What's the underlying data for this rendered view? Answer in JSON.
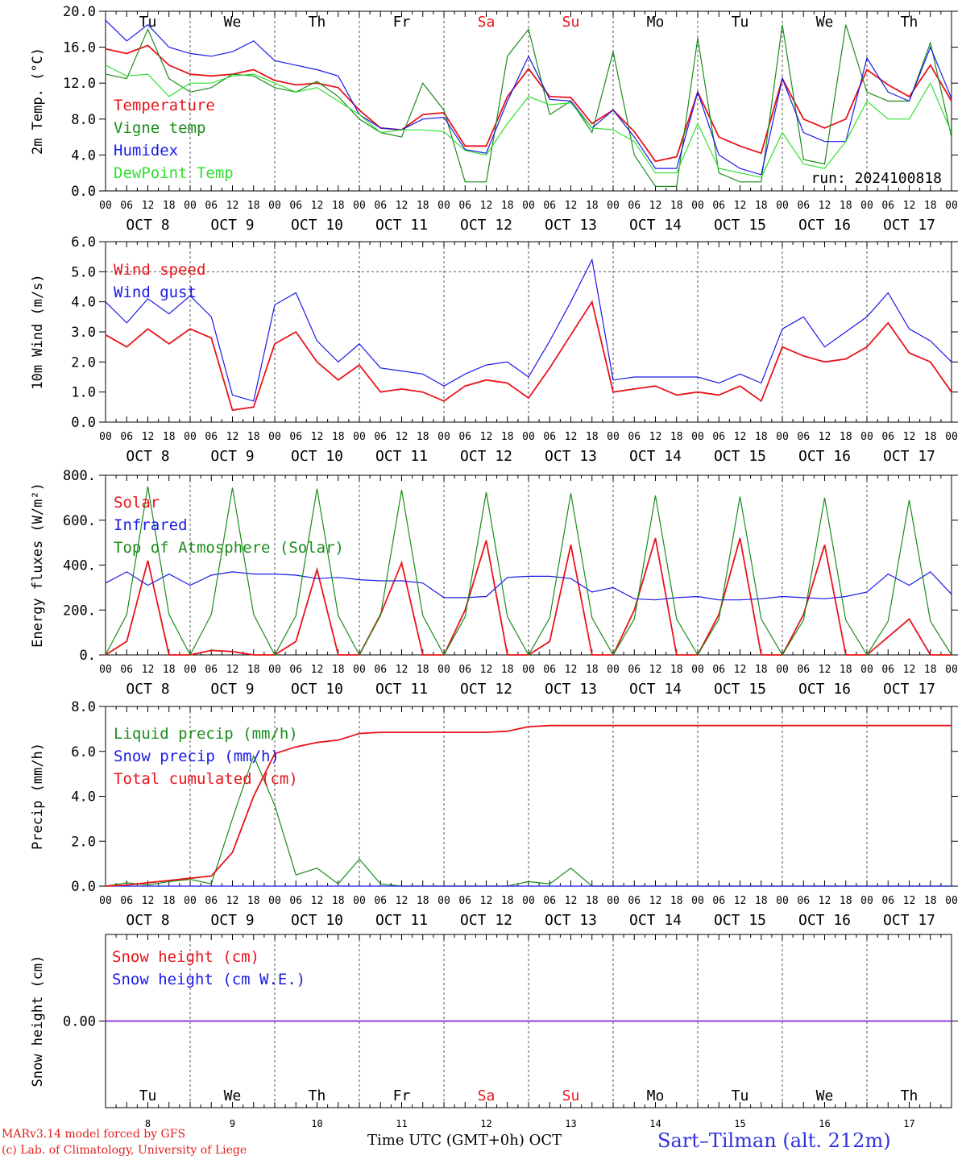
{
  "run_label": "run: 2024100818",
  "footer": {
    "model": "MARv3.14 model forced by GFS",
    "credit": "(c) Lab. of Climatology, University of Liege",
    "time_axis": "Time UTC (GMT+0h) OCT",
    "station": "Sart–Tilman (alt. 212m)"
  },
  "colors": {
    "red": "#e8141a",
    "green": "#1a8c1a",
    "blue": "#1a1ae8",
    "lightgreen": "#30e030",
    "purple": "#8a2be2"
  },
  "days": [
    {
      "weekday": "Tu",
      "date": "OCT  8",
      "num": "8",
      "weekend": false
    },
    {
      "weekday": "We",
      "date": "OCT  9",
      "num": "9",
      "weekend": false
    },
    {
      "weekday": "Th",
      "date": "OCT 10",
      "num": "10",
      "weekend": false
    },
    {
      "weekday": "Fr",
      "date": "OCT 11",
      "num": "11",
      "weekend": false
    },
    {
      "weekday": "Sa",
      "date": "OCT 12",
      "num": "12",
      "weekend": true
    },
    {
      "weekday": "Su",
      "date": "OCT 13",
      "num": "13",
      "weekend": true
    },
    {
      "weekday": "Mo",
      "date": "OCT 14",
      "num": "14",
      "weekend": false
    },
    {
      "weekday": "Tu",
      "date": "OCT 15",
      "num": "15",
      "weekend": false
    },
    {
      "weekday": "We",
      "date": "OCT 16",
      "num": "16",
      "weekend": false
    },
    {
      "weekday": "Th",
      "date": "OCT 17",
      "num": "17",
      "weekend": false
    }
  ],
  "hour_ticks": [
    "00",
    "06",
    "12",
    "18"
  ],
  "chart_data": [
    {
      "type": "line",
      "ylabel": "2m Temp. (°C)",
      "ylim": [
        0,
        20
      ],
      "yticks": [
        "0.0",
        "4.0",
        "8.0",
        "12.0",
        "16.0",
        "20.0"
      ],
      "x_hours": [
        0,
        6,
        12,
        18,
        24,
        30,
        36,
        42,
        48,
        54,
        60,
        66,
        72,
        78,
        84,
        90,
        96,
        102,
        108,
        114,
        120,
        126,
        132,
        138,
        144,
        150,
        156,
        162,
        168,
        174,
        180,
        186,
        192,
        198,
        204,
        210,
        216,
        222,
        228,
        234,
        240
      ],
      "series": [
        {
          "name": "Temperature",
          "color": "red",
          "values": [
            15.8,
            15.3,
            16.2,
            14.0,
            13.0,
            12.8,
            13.0,
            13.5,
            12.3,
            11.8,
            12.0,
            11.5,
            9.0,
            7.0,
            6.8,
            8.5,
            8.7,
            5.0,
            5.0,
            10.5,
            13.6,
            10.5,
            10.4,
            7.5,
            9.0,
            6.6,
            3.3,
            3.8,
            11.0,
            6.0,
            5.0,
            4.2,
            12.5,
            8.0,
            7.0,
            8.0,
            13.5,
            11.8,
            10.5,
            14.0,
            10.0
          ]
        },
        {
          "name": "Vigne temp",
          "color": "green",
          "values": [
            13.0,
            12.5,
            18.0,
            12.5,
            11.0,
            11.5,
            13.0,
            12.8,
            11.5,
            11.0,
            12.2,
            10.5,
            8.0,
            6.5,
            6.0,
            12.0,
            9.0,
            1.0,
            1.0,
            15.0,
            18.0,
            8.5,
            10.0,
            6.5,
            15.5,
            4.0,
            0.5,
            0.5,
            17.0,
            2.0,
            1.0,
            1.0,
            18.5,
            3.5,
            3.0,
            18.5,
            11.0,
            10.0,
            10.0,
            16.5,
            6.0
          ]
        },
        {
          "name": "Humidex",
          "color": "blue",
          "values": [
            19.0,
            16.7,
            18.5,
            16.0,
            15.3,
            15.0,
            15.5,
            16.7,
            14.5,
            14.0,
            13.5,
            12.8,
            8.5,
            7.0,
            6.8,
            8.0,
            8.2,
            4.6,
            4.2,
            10.0,
            15.0,
            10.2,
            10.0,
            7.0,
            9.0,
            6.0,
            2.5,
            2.5,
            11.0,
            4.0,
            2.5,
            1.8,
            12.5,
            6.5,
            5.5,
            5.5,
            14.8,
            11.0,
            10.0,
            16.0,
            10.3
          ]
        },
        {
          "name": "DewPoint Temp",
          "color": "lightgreen",
          "values": [
            14.0,
            12.8,
            13.0,
            10.5,
            12.0,
            12.0,
            12.8,
            13.0,
            12.0,
            11.0,
            11.5,
            10.0,
            8.5,
            6.5,
            6.8,
            6.8,
            6.6,
            4.5,
            4.0,
            7.5,
            10.5,
            9.6,
            9.8,
            7.0,
            6.8,
            5.5,
            2.0,
            2.0,
            7.5,
            2.5,
            2.0,
            1.5,
            6.5,
            3.0,
            2.5,
            5.5,
            10.0,
            8.0,
            8.0,
            12.0,
            6.5
          ]
        }
      ]
    },
    {
      "type": "line",
      "ylabel": "10m Wind (m/s)",
      "ylim": [
        0,
        6
      ],
      "yticks": [
        "0.0",
        "1.0",
        "2.0",
        "3.0",
        "4.0",
        "5.0",
        "6.0"
      ],
      "dashed_y": 5,
      "x_hours": [
        0,
        6,
        12,
        18,
        24,
        30,
        36,
        42,
        48,
        54,
        60,
        66,
        72,
        78,
        84,
        90,
        96,
        102,
        108,
        114,
        120,
        126,
        132,
        138,
        144,
        150,
        156,
        162,
        168,
        174,
        180,
        186,
        192,
        198,
        204,
        210,
        216,
        222,
        228,
        234,
        240
      ],
      "series": [
        {
          "name": "Wind speed",
          "color": "red",
          "values": [
            2.9,
            2.5,
            3.1,
            2.6,
            3.1,
            2.8,
            0.4,
            0.5,
            2.6,
            3.0,
            2.0,
            1.4,
            1.9,
            1.0,
            1.1,
            1.0,
            0.7,
            1.2,
            1.4,
            1.3,
            0.8,
            1.8,
            2.9,
            4.0,
            1.0,
            1.1,
            1.2,
            0.9,
            1.0,
            0.9,
            1.2,
            0.7,
            2.5,
            2.2,
            2.0,
            2.1,
            2.5,
            3.3,
            2.3,
            2.0,
            1.0
          ]
        },
        {
          "name": "Wind gust",
          "color": "blue",
          "values": [
            4.0,
            3.3,
            4.1,
            3.6,
            4.2,
            3.5,
            0.9,
            0.7,
            3.9,
            4.3,
            2.7,
            2.0,
            2.6,
            1.8,
            1.7,
            1.6,
            1.2,
            1.6,
            1.9,
            2.0,
            1.5,
            2.7,
            4.0,
            5.4,
            1.4,
            1.5,
            1.5,
            1.5,
            1.5,
            1.3,
            1.6,
            1.3,
            3.1,
            3.5,
            2.5,
            3.0,
            3.5,
            4.3,
            3.1,
            2.7,
            2.0
          ]
        }
      ]
    },
    {
      "type": "line",
      "ylabel": "Energy fluxes (W/m²)",
      "ylim": [
        0,
        800
      ],
      "yticks": [
        "0.",
        "200.",
        "400.",
        "600.",
        "800."
      ],
      "x_hours": [
        0,
        6,
        12,
        18,
        24,
        30,
        36,
        42,
        48,
        54,
        60,
        66,
        72,
        78,
        84,
        90,
        96,
        102,
        108,
        114,
        120,
        126,
        132,
        138,
        144,
        150,
        156,
        162,
        168,
        174,
        180,
        186,
        192,
        198,
        204,
        210,
        216,
        222,
        228,
        234,
        240
      ],
      "series": [
        {
          "name": "Solar",
          "color": "red",
          "values": [
            0,
            60,
            420,
            0,
            0,
            20,
            15,
            0,
            0,
            60,
            380,
            0,
            0,
            180,
            410,
            0,
            0,
            200,
            510,
            0,
            0,
            60,
            490,
            0,
            0,
            200,
            520,
            0,
            0,
            180,
            520,
            0,
            0,
            180,
            490,
            0,
            0,
            80,
            160,
            0,
            0
          ]
        },
        {
          "name": "Infrared",
          "color": "blue",
          "values": [
            320,
            370,
            310,
            360,
            310,
            355,
            370,
            360,
            360,
            355,
            340,
            345,
            335,
            330,
            330,
            320,
            255,
            255,
            260,
            345,
            350,
            350,
            340,
            280,
            300,
            250,
            245,
            255,
            260,
            245,
            245,
            250,
            260,
            255,
            250,
            260,
            280,
            360,
            310,
            370,
            270
          ]
        },
        {
          "name": "Top of Atmosphere (Solar)",
          "color": "green",
          "values": [
            0,
            180,
            750,
            180,
            0,
            180,
            745,
            180,
            0,
            175,
            740,
            175,
            0,
            175,
            735,
            175,
            0,
            170,
            725,
            170,
            0,
            165,
            720,
            165,
            0,
            160,
            710,
            160,
            0,
            160,
            705,
            160,
            0,
            155,
            700,
            155,
            0,
            150,
            690,
            150,
            0
          ]
        }
      ]
    },
    {
      "type": "line",
      "ylabel": "Precip (mm/h)",
      "ylim": [
        0,
        8
      ],
      "yticks": [
        "0.0",
        "2.0",
        "4.0",
        "6.0",
        "8.0"
      ],
      "x_hours": [
        0,
        6,
        12,
        18,
        24,
        30,
        36,
        42,
        48,
        54,
        60,
        66,
        72,
        78,
        84,
        90,
        96,
        102,
        108,
        114,
        120,
        126,
        132,
        138,
        144,
        150,
        156,
        162,
        168,
        174,
        180,
        186,
        192,
        198,
        204,
        210,
        216,
        222,
        228,
        234,
        240
      ],
      "series": [
        {
          "name": "Liquid precip (mm/h)",
          "color": "green",
          "values": [
            0.0,
            0.15,
            0.05,
            0.2,
            0.3,
            0.1,
            3.0,
            5.8,
            3.6,
            0.5,
            0.8,
            0.1,
            1.2,
            0.1,
            0.0,
            0.0,
            0.0,
            0.0,
            0.0,
            0.0,
            0.2,
            0.1,
            0.8,
            0.0,
            0.0,
            0.0,
            0.0,
            0.0,
            0.0,
            0.0,
            0.0,
            0.0,
            0.0,
            0.0,
            0.0,
            0.0,
            0.0,
            0.0,
            0.0,
            0.0,
            0.0
          ]
        },
        {
          "name": "Snow precip (mm/h)",
          "color": "blue",
          "values": [
            0,
            0,
            0,
            0,
            0,
            0,
            0,
            0,
            0,
            0,
            0,
            0,
            0,
            0,
            0,
            0,
            0,
            0,
            0,
            0,
            0,
            0,
            0,
            0,
            0,
            0,
            0,
            0,
            0,
            0,
            0,
            0,
            0,
            0,
            0,
            0,
            0,
            0,
            0,
            0,
            0
          ]
        },
        {
          "name": "Total cumulated (cm)",
          "color": "red",
          "values": [
            0.0,
            0.05,
            0.15,
            0.25,
            0.35,
            0.45,
            1.5,
            4.0,
            5.9,
            6.2,
            6.4,
            6.5,
            6.8,
            6.85,
            6.85,
            6.85,
            6.85,
            6.85,
            6.85,
            6.9,
            7.1,
            7.15,
            7.15,
            7.15,
            7.15,
            7.15,
            7.15,
            7.15,
            7.15,
            7.15,
            7.15,
            7.15,
            7.15,
            7.15,
            7.15,
            7.15,
            7.15,
            7.15,
            7.15,
            7.15,
            7.15
          ]
        }
      ]
    },
    {
      "type": "line",
      "ylabel": "Snow height (cm)",
      "ylim": [
        -1,
        1
      ],
      "yticks": [
        "0.00"
      ],
      "x_hours": [
        0,
        240
      ],
      "series": [
        {
          "name": "Snow height (cm)",
          "color": "red",
          "values": [
            0,
            0
          ]
        },
        {
          "name": "Snow height (cm W.E.)",
          "color": "blue",
          "values": [
            0,
            0
          ]
        }
      ]
    }
  ]
}
